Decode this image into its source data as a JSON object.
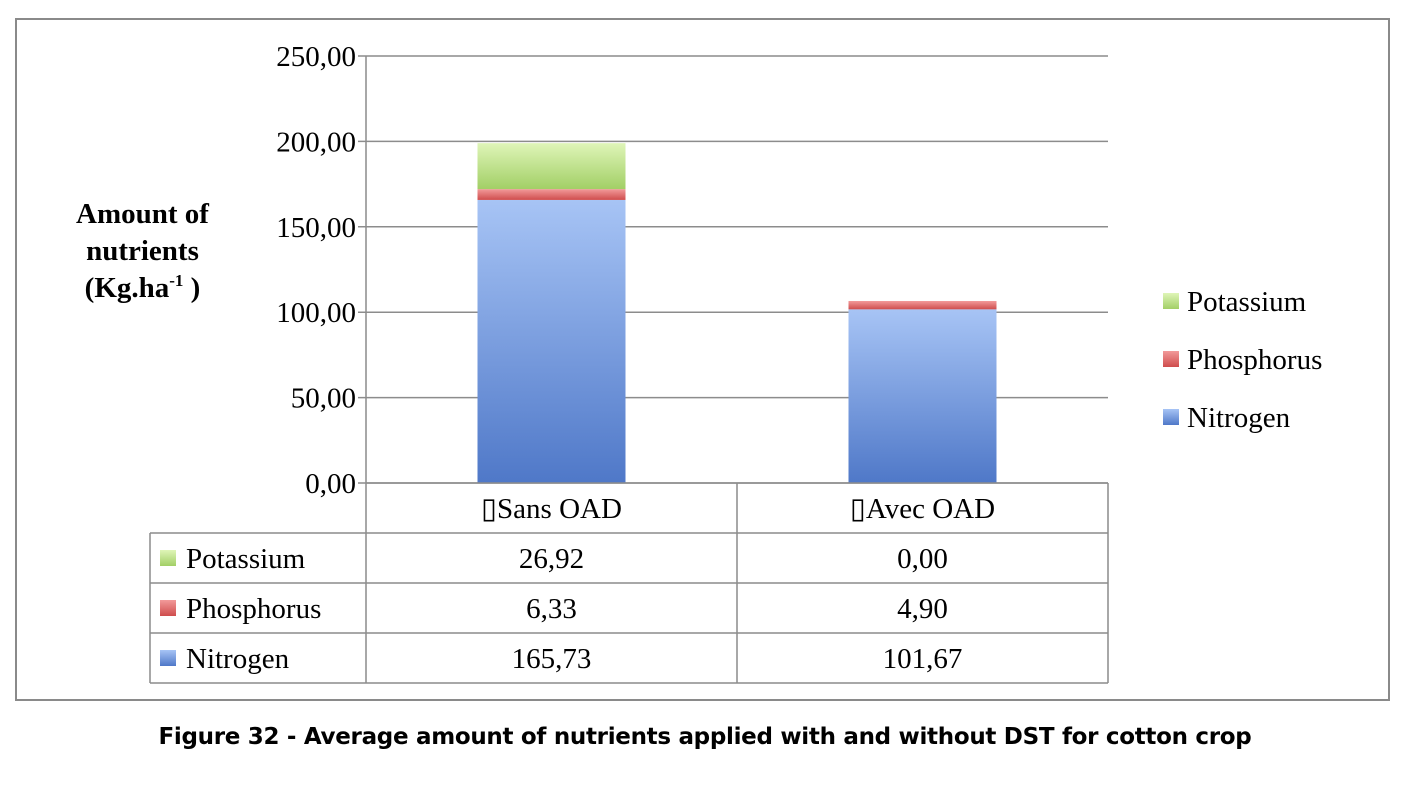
{
  "chart_data": {
    "type": "bar",
    "stacked": true,
    "categories": [
      "▯Sans OAD",
      "▯Avec OAD"
    ],
    "series": [
      {
        "name": "Nitrogen",
        "values": [
          165.73,
          101.67
        ],
        "display": [
          "165,73",
          "101,67"
        ],
        "color": "#6f97dd",
        "color_light": "#a7c4f5",
        "color_dark": "#4f78c8"
      },
      {
        "name": "Phosphorus",
        "values": [
          6.33,
          4.9
        ],
        "display": [
          "6,33",
          "4,90"
        ],
        "color": "#e06767",
        "color_light": "#f29a9a",
        "color_dark": "#cf4d4d"
      },
      {
        "name": "Potassium",
        "values": [
          26.92,
          0.0
        ],
        "display": [
          "26,92",
          "0,00"
        ],
        "color": "#b8df7e",
        "color_light": "#dff5b8",
        "color_dark": "#a2cf66"
      }
    ],
    "ylim": [
      0,
      250
    ],
    "yticks": [
      0,
      50,
      100,
      150,
      200,
      250
    ],
    "ytick_labels": [
      "0,00",
      "50,00",
      "100,00",
      "150,00",
      "200,00",
      "250,00"
    ],
    "ylabel_lines": [
      "Amount of",
      "nutrients",
      "(Kg.ha",
      "-1",
      " )"
    ],
    "grid": true,
    "legend_position": "right",
    "data_table": true
  },
  "caption": "Figure 32 - Average amount of nutrients applied with and without DST for cotton crop"
}
